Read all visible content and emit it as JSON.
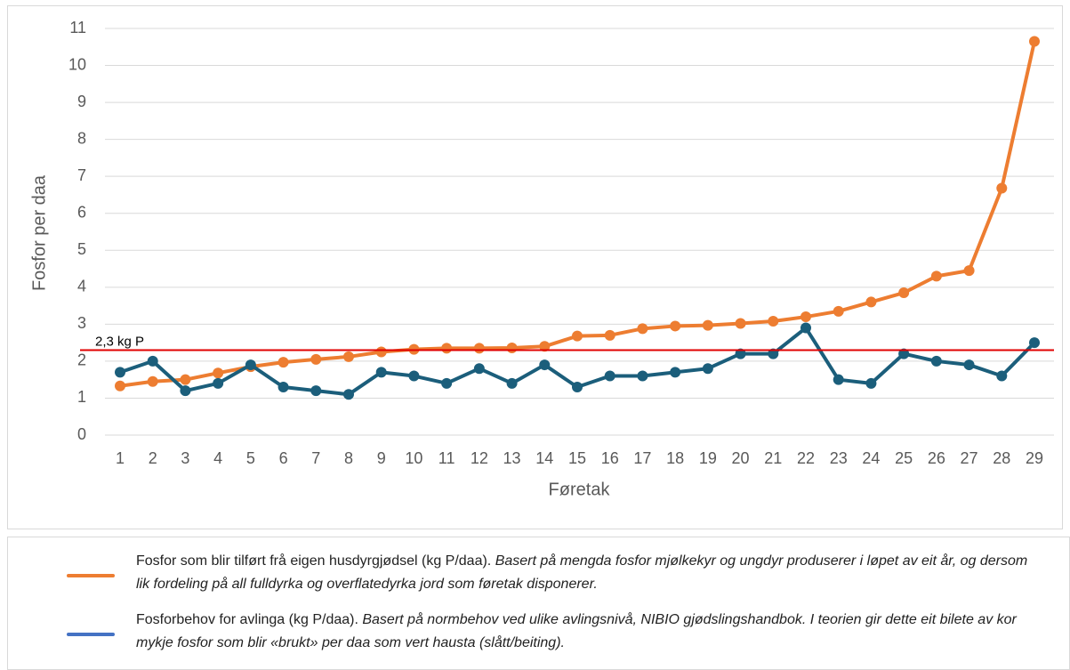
{
  "chart_data": {
    "type": "line",
    "x_label": "Føretak",
    "y_label": "Fosfor per daa",
    "categories": [
      "1",
      "2",
      "3",
      "4",
      "5",
      "6",
      "7",
      "8",
      "9",
      "10",
      "11",
      "12",
      "13",
      "14",
      "15",
      "16",
      "17",
      "18",
      "19",
      "20",
      "21",
      "22",
      "23",
      "24",
      "25",
      "26",
      "27",
      "28",
      "29"
    ],
    "ylim": [
      0,
      11
    ],
    "yticks": [
      0,
      1,
      2,
      3,
      4,
      5,
      6,
      7,
      8,
      9,
      10,
      11
    ],
    "grid": true,
    "reference_line": {
      "value": 2.3,
      "label": "2,3 kg P",
      "color": "#e00000"
    },
    "series": [
      {
        "name": "Fosfor som blir tilført frå eigen husdyrgjødsel (kg P/daa).",
        "description": "Basert på mengda fosfor mjølkekyr og ungdyr produserer i løpet av eit år, og dersom lik fordeling på all fulldyrka og overflatedyrka jord som føretak disponerer.",
        "color": "#ed7d31",
        "legend_color": "#ed7d31",
        "values": [
          1.33,
          1.45,
          1.5,
          1.68,
          1.85,
          1.97,
          2.05,
          2.12,
          2.25,
          2.32,
          2.35,
          2.35,
          2.36,
          2.4,
          2.68,
          2.7,
          2.88,
          2.95,
          2.97,
          3.02,
          3.08,
          3.2,
          3.35,
          3.6,
          3.85,
          4.3,
          4.45,
          6.68,
          10.65
        ]
      },
      {
        "name": "Fosforbehov for avlinga (kg P/daa).",
        "description": "Basert på normbehov ved ulike avlingsnivå, NIBIO gjødslingshandbok. I teorien gir dette eit bilete av kor mykje fosfor som blir «brukt» per daa som vert hausta (slått/beiting).",
        "color": "#1b5e7b",
        "legend_color": "#4472c4",
        "values": [
          1.7,
          2.0,
          1.2,
          1.4,
          1.9,
          1.3,
          1.2,
          1.1,
          1.7,
          1.6,
          1.4,
          1.8,
          1.4,
          1.9,
          1.3,
          1.6,
          1.6,
          1.7,
          1.8,
          2.2,
          2.2,
          2.9,
          1.5,
          1.4,
          2.2,
          2.0,
          1.9,
          1.6,
          2.5
        ]
      }
    ]
  }
}
